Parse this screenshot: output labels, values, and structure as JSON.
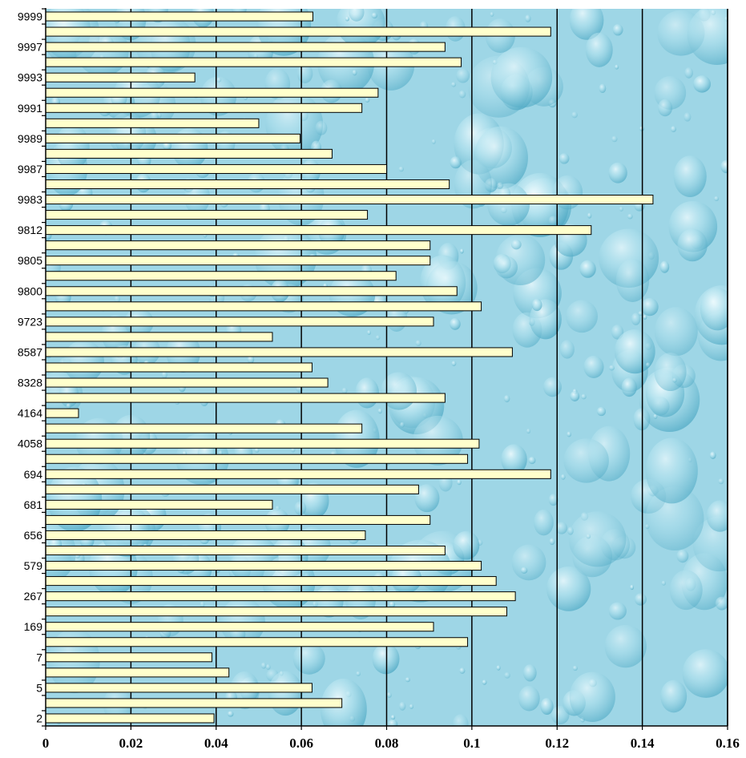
{
  "chart_data": {
    "type": "bar",
    "orientation": "horizontal",
    "categories": [
      "2",
      "",
      "5",
      "",
      "7",
      "",
      "169",
      "",
      "267",
      "",
      "579",
      "",
      "656",
      "",
      "681",
      "",
      "694",
      "",
      "4058",
      "",
      "4164",
      "",
      "8328",
      "",
      "8587",
      "",
      "9723",
      "",
      "9800",
      "",
      "9805",
      "",
      "9812",
      "",
      "9983",
      "",
      "9987",
      "",
      "9989",
      "",
      "9991",
      "",
      "9993",
      "",
      "9997",
      "",
      "9999"
    ],
    "values": [
      0.0395,
      0.0695,
      0.0625,
      0.043,
      0.039,
      0.099,
      0.091,
      0.1082,
      0.1102,
      0.1057,
      0.1022,
      0.0937,
      0.075,
      0.0902,
      0.0532,
      0.0875,
      0.1185,
      0.099,
      0.1017,
      0.0742,
      0.0077,
      0.0937,
      0.0662,
      0.0625,
      0.1095,
      0.0532,
      0.091,
      0.1022,
      0.0965,
      0.0822,
      0.0902,
      0.0902,
      0.128,
      0.0755,
      0.1425,
      0.0947,
      0.08,
      0.0672,
      0.0597,
      0.05,
      0.0742,
      0.078,
      0.035,
      0.0975,
      0.0937,
      0.1185,
      0.0627
    ],
    "x_ticks": [
      "0",
      "0.02",
      "0.04",
      "0.06",
      "0.08",
      "0.1",
      "0.12",
      "0.14",
      "0.16"
    ],
    "xlim": [
      0,
      0.16
    ],
    "grid": "vertical",
    "bar_color": "#ffffcc",
    "bar_edge_color": "#000000",
    "background": "water-drops-texture",
    "background_colors": [
      "#9ed6e6",
      "#c5ecf6",
      "#6cbfd6"
    ]
  }
}
